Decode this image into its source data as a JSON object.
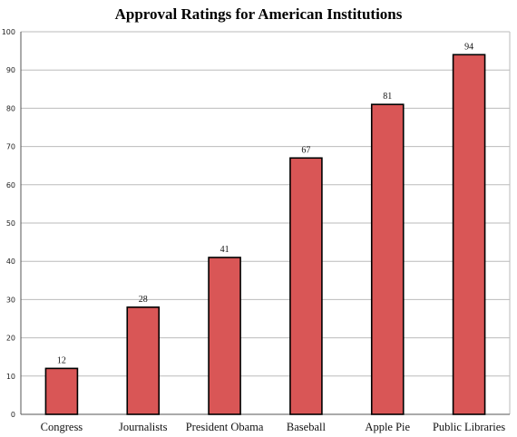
{
  "chart_data": {
    "type": "bar",
    "title": "Approval Ratings for American Institutions",
    "categories": [
      "Congress",
      "Journalists",
      "President Obama",
      "Baseball",
      "Apple Pie",
      "Public Libraries"
    ],
    "values": [
      12,
      28,
      41,
      67,
      81,
      94
    ],
    "data_labels": [
      "12",
      "28",
      "41",
      "67",
      "81",
      "94"
    ],
    "ylim": [
      0,
      100
    ],
    "yticks": [
      0,
      10,
      20,
      30,
      40,
      50,
      60,
      70,
      80,
      90,
      100
    ],
    "grid": true,
    "legend": "none",
    "bar_color": "#d95656",
    "bar_edge_color": "#000000",
    "grid_color": "#bbbbbb"
  }
}
